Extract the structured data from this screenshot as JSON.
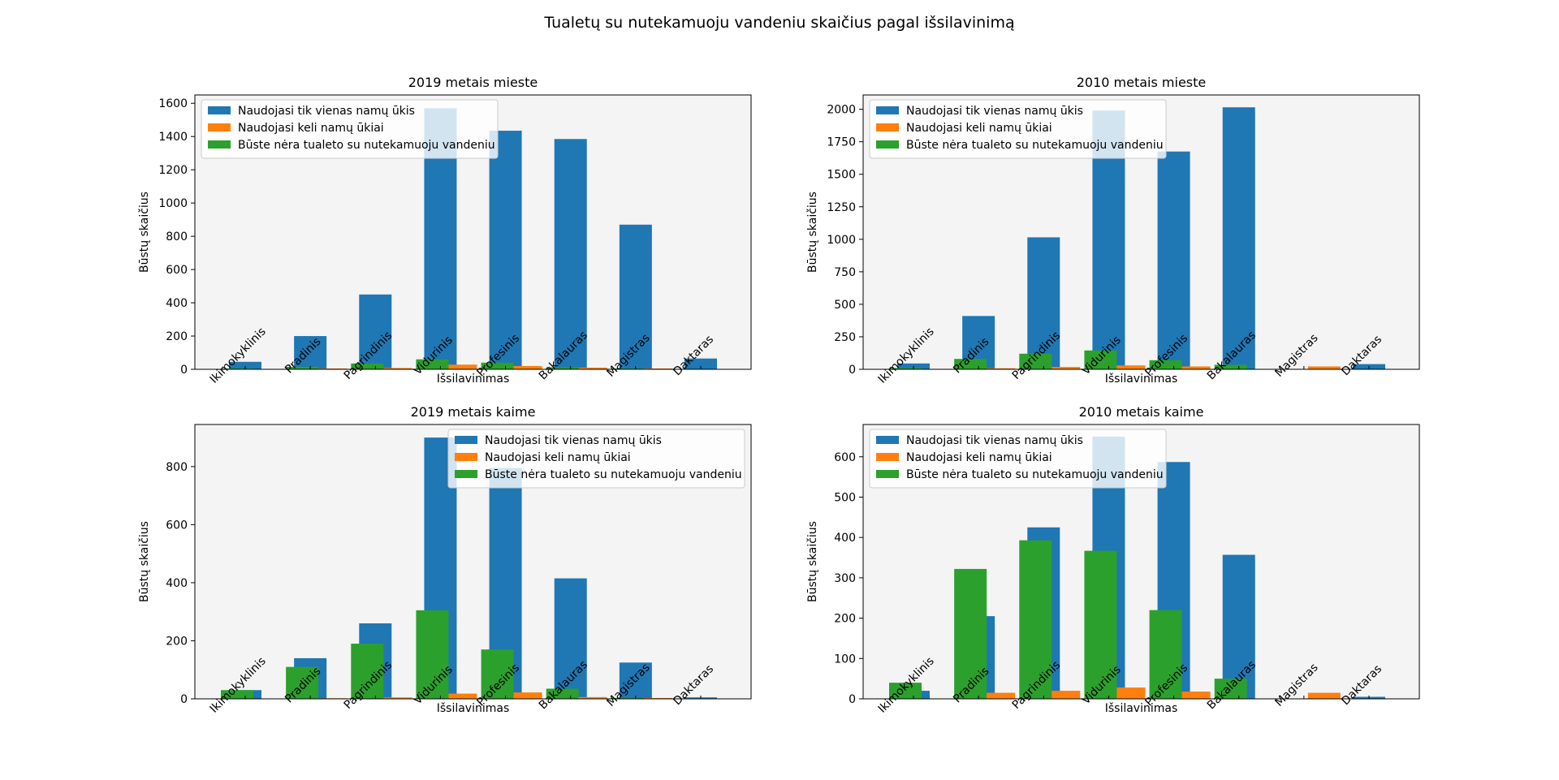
{
  "figure": {
    "title": "Tualetų su nutekamuoju vandeniu skaičius pagal išsilavinimą"
  },
  "colors": {
    "single": "#1f77b4",
    "multi": "#ff7f0e",
    "none": "#2ca02c",
    "axes_bg": "#f4f4f4"
  },
  "chart_data": [
    {
      "type": "bar",
      "title": "2019 metais mieste",
      "xlabel": "Išsilavinimas",
      "ylabel": "Būstų skaičius",
      "ylim": [
        0,
        1650
      ],
      "yticks": [
        0,
        200,
        400,
        600,
        800,
        1000,
        1200,
        1400,
        1600
      ],
      "legend_position": "top-left",
      "categories": [
        "Ikimokyklinis",
        "Pradinis",
        "Pagrindinis",
        "Vidurinis",
        "Profesinis",
        "Bakalauras",
        "Magistras",
        "Daktaras"
      ],
      "series": [
        {
          "name": "Naudojasi tik vienas namų ūkis",
          "values": [
            45,
            200,
            450,
            1570,
            1435,
            1385,
            870,
            65
          ]
        },
        {
          "name": "Naudojasi keli namų ūkiai",
          "values": [
            2,
            5,
            8,
            28,
            20,
            10,
            5,
            0
          ]
        },
        {
          "name": "Būste nėra tualeto su nutekamuoju vandeniu",
          "values": [
            5,
            15,
            35,
            60,
            40,
            12,
            5,
            0
          ]
        }
      ]
    },
    {
      "type": "bar",
      "title": "2010 metais mieste",
      "xlabel": "Išsilavinimas",
      "ylabel": "Būstų skaičius",
      "ylim": [
        0,
        2110
      ],
      "yticks": [
        0,
        250,
        500,
        750,
        1000,
        1250,
        1500,
        1750,
        2000
      ],
      "legend_position": "top-left",
      "categories": [
        "Ikimokyklinis",
        "Pradinis",
        "Pagrindinis",
        "Vidurinis",
        "Profesinis",
        "Bakalauras",
        "Magistras",
        "Daktaras"
      ],
      "series": [
        {
          "name": "Naudojasi tik vienas namų ūkis",
          "values": [
            45,
            410,
            1015,
            1990,
            1675,
            2015,
            0,
            40
          ]
        },
        {
          "name": "Naudojasi keli namų ūkiai",
          "values": [
            2,
            8,
            18,
            30,
            22,
            0,
            22,
            0
          ]
        },
        {
          "name": "Būste nėra tualeto su nutekamuoju vandeniu",
          "values": [
            10,
            80,
            120,
            145,
            70,
            35,
            0,
            0
          ]
        }
      ]
    },
    {
      "type": "bar",
      "title": "2019 metais kaime",
      "xlabel": "Išsilavinimas",
      "ylabel": "Būstų skaičius",
      "ylim": [
        0,
        945
      ],
      "yticks": [
        0,
        200,
        400,
        600,
        800
      ],
      "legend_position": "top-right",
      "categories": [
        "Ikimokyklinis",
        "Pradinis",
        "Pagrindinis",
        "Vidurinis",
        "Profesinis",
        "Bakalauras",
        "Magistras",
        "Daktaras"
      ],
      "series": [
        {
          "name": "Naudojasi tik vienas namų ūkis",
          "values": [
            30,
            140,
            260,
            900,
            795,
            415,
            125,
            5
          ]
        },
        {
          "name": "Naudojasi keli namų ūkiai",
          "values": [
            0,
            2,
            5,
            18,
            22,
            6,
            3,
            0
          ]
        },
        {
          "name": "Būste nėra tualeto su nutekamuoju vandeniu",
          "values": [
            30,
            110,
            190,
            305,
            170,
            35,
            3,
            0
          ]
        }
      ]
    },
    {
      "type": "bar",
      "title": "2010 metais kaime",
      "xlabel": "Išsilavinimas",
      "ylabel": "Būstų skaičius",
      "ylim": [
        0,
        680
      ],
      "yticks": [
        0,
        100,
        200,
        300,
        400,
        500,
        600
      ],
      "legend_position": "top-left",
      "categories": [
        "Ikimokyklinis",
        "Pradinis",
        "Pagrindinis",
        "Vidurinis",
        "Profesinis",
        "Bakalauras",
        "Magistras",
        "Daktaras"
      ],
      "series": [
        {
          "name": "Naudojasi tik vienas namų ūkis",
          "values": [
            20,
            205,
            425,
            650,
            587,
            357,
            0,
            5
          ]
        },
        {
          "name": "Naudojasi keli namų ūkiai",
          "values": [
            0,
            15,
            20,
            28,
            18,
            0,
            15,
            0
          ]
        },
        {
          "name": "Būste nėra tualeto su nutekamuoju vandeniu",
          "values": [
            40,
            322,
            393,
            367,
            220,
            50,
            0,
            0
          ]
        }
      ]
    }
  ]
}
